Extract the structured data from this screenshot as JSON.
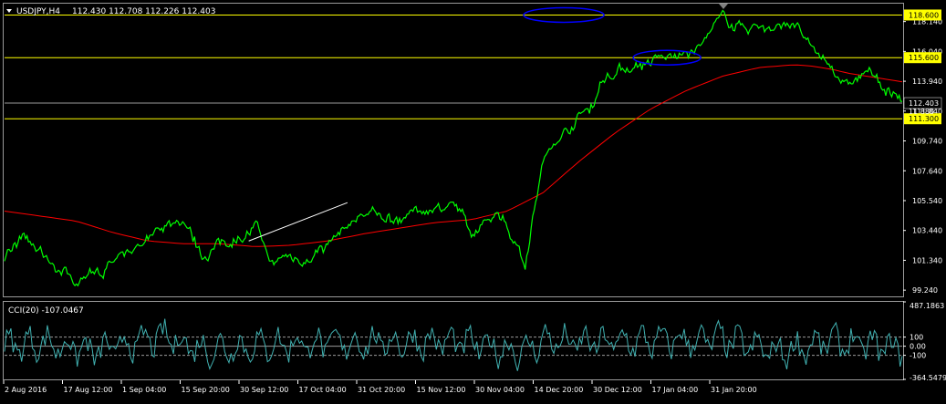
{
  "header": {
    "symbol": "USDJPY,H4",
    "ohlc": "112.430 112.708 112.226 112.403"
  },
  "indicator": {
    "label": "CCI(20) -107.0467",
    "axis_ticks": [
      "487.1863",
      "100",
      "0.00",
      "-100",
      "-364.5479"
    ]
  },
  "colors": {
    "background": "#000000",
    "price": "#00ff00",
    "moving_average": "#ff0000",
    "cci": "#40b0b0",
    "hline": "#ffff00",
    "ellipse": "#0000ff",
    "trendline": "#ffffff",
    "tag_bg": "#ffff00",
    "current_tag_bg": "#000000"
  },
  "chart_data": [
    {
      "type": "line",
      "title": "USDJPY,H4",
      "x_tick_labels": [
        "2 Aug 2016",
        "17 Aug 12:00",
        "1 Sep 04:00",
        "15 Sep 20:00",
        "30 Sep 12:00",
        "17 Oct 04:00",
        "31 Oct 20:00",
        "15 Nov 12:00",
        "30 Nov 04:00",
        "14 Dec 20:00",
        "30 Dec 12:00",
        "17 Jan 04:00",
        "31 Jan 20:00"
      ],
      "y_ticks": [
        99.24,
        101.34,
        103.44,
        105.54,
        107.64,
        109.74,
        111.84,
        113.94,
        116.04,
        118.14
      ],
      "ylim": [
        98.8,
        119.4
      ],
      "series": [
        {
          "role": "price",
          "anchors_x": [
            0,
            2,
            5,
            8,
            10,
            14,
            17,
            20,
            22,
            24,
            28,
            30,
            31,
            34,
            40,
            43,
            46,
            50,
            52,
            55,
            58,
            60,
            63,
            64,
            65,
            67,
            70,
            73,
            77,
            80,
            82,
            84,
            86,
            88,
            90,
            92,
            94,
            96,
            100
          ],
          "anchors_y": [
            101.2,
            102.8,
            101.3,
            99.9,
            100.6,
            101.5,
            103.8,
            104.2,
            101.8,
            102.5,
            103.6,
            100.8,
            101.6,
            101.5,
            104.7,
            104.2,
            104.8,
            105.5,
            102.8,
            104.9,
            101.4,
            108.3,
            110.8,
            111.6,
            111.9,
            114.4,
            115.1,
            115.4,
            116.0,
            118.3,
            117.8,
            117.9,
            117.5,
            118.2,
            115.8,
            115.1,
            113.5,
            114.6,
            112.4
          ]
        },
        {
          "role": "moving_average",
          "anchors_x": [
            0,
            8,
            12,
            16,
            20,
            24,
            28,
            32,
            36,
            40,
            44,
            48,
            52,
            56,
            60,
            64,
            68,
            72,
            76,
            80,
            84,
            88,
            90,
            92,
            94,
            96,
            100
          ],
          "anchors_y": [
            104.8,
            104.1,
            103.3,
            102.7,
            102.5,
            102.5,
            102.3,
            102.4,
            102.7,
            103.2,
            103.6,
            104.0,
            104.2,
            104.8,
            106.1,
            108.3,
            110.3,
            112.0,
            113.3,
            114.3,
            114.9,
            115.1,
            115.0,
            114.8,
            114.5,
            114.3,
            113.9
          ]
        }
      ],
      "horizontal_levels": [
        118.6,
        115.6,
        111.3
      ],
      "level_tags": [
        "118.600",
        "115.600",
        "111.300"
      ],
      "current_price": 112.403,
      "current_price_tag": "112.403",
      "hidden_tag": "111.840",
      "right_edge_tag": "11 880"
    },
    {
      "type": "line",
      "title": "CCI(20) -107.0467",
      "ylim": [
        -364.5479,
        487.1863
      ],
      "levels": [
        100,
        0,
        -100
      ],
      "series": [
        {
          "role": "cci",
          "anchors_x": [
            0,
            4,
            10,
            18,
            22,
            30,
            44,
            50,
            58,
            60,
            62,
            64,
            80,
            86,
            92,
            100
          ],
          "anchors_y": [
            0,
            160,
            -220,
            420,
            -150,
            80,
            180,
            200,
            -250,
            300,
            170,
            150,
            300,
            -260,
            210,
            -107
          ]
        }
      ]
    }
  ]
}
